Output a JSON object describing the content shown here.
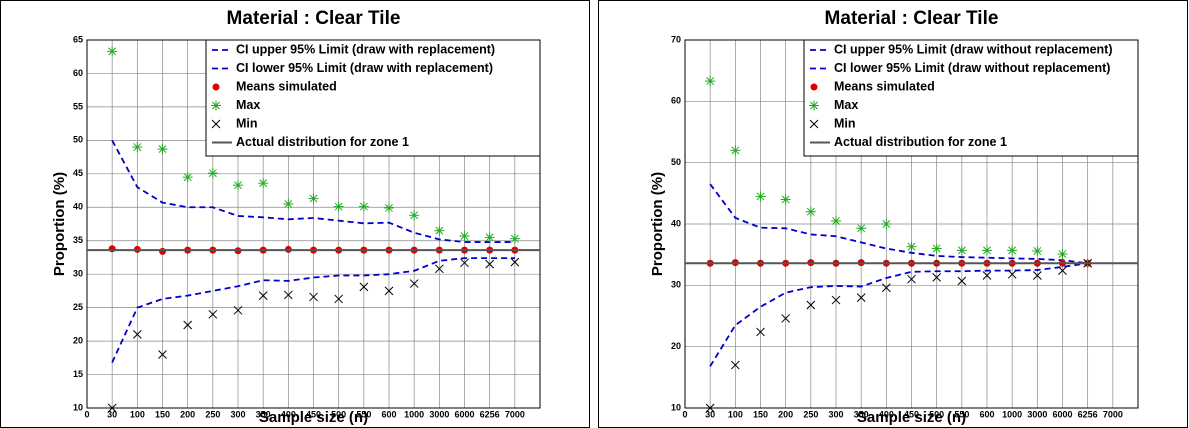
{
  "chart_data": [
    {
      "type": "line",
      "title": "Material : Clear Tile",
      "xlabel": "Sample size (n)",
      "ylabel": "Proportion (%)",
      "categories": [
        "0",
        "30",
        "100",
        "150",
        "200",
        "250",
        "300",
        "350",
        "400",
        "450",
        "500",
        "550",
        "600",
        "1000",
        "3000",
        "6000",
        "6256",
        "7000",
        null
      ],
      "ylim": [
        10,
        65
      ],
      "yticks": [
        10,
        15,
        20,
        25,
        30,
        35,
        40,
        45,
        50,
        55,
        60,
        65
      ],
      "grid": true,
      "legend": "upper right",
      "series": [
        {
          "name": "CI upper 95% Limit (draw with replacement)",
          "color": "#0000cc",
          "style": "dashed",
          "values": [
            null,
            50,
            43,
            40.7,
            40,
            40,
            38.7,
            38.5,
            38.2,
            38.4,
            38,
            37.6,
            37.7,
            36.2,
            35.2,
            34.8,
            34.8,
            34.8,
            null
          ]
        },
        {
          "name": "CI lower 95% Limit (draw with replacement)",
          "color": "#0000cc",
          "style": "dashed",
          "values": [
            null,
            16.8,
            25,
            26.3,
            26.8,
            27.5,
            28.2,
            29.1,
            29,
            29.5,
            29.8,
            29.8,
            30,
            30.5,
            32,
            32.4,
            32.4,
            32.4,
            null
          ]
        },
        {
          "name": "Means simulated",
          "color": "#dd0000",
          "style": "dot",
          "values": [
            null,
            33.8,
            33.7,
            33.4,
            33.6,
            33.6,
            33.5,
            33.6,
            33.7,
            33.6,
            33.6,
            33.6,
            33.6,
            33.6,
            33.6,
            33.6,
            33.6,
            33.6,
            null
          ]
        },
        {
          "name": "Max",
          "color": "#22aa22",
          "style": "star",
          "values": [
            null,
            63.3,
            49,
            48.7,
            44.5,
            45.1,
            43.3,
            43.6,
            40.5,
            41.3,
            40.1,
            40.1,
            39.9,
            38.8,
            36.5,
            35.7,
            35.5,
            35.3,
            null
          ]
        },
        {
          "name": "Min",
          "color": "#000000",
          "style": "x",
          "values": [
            null,
            10,
            21,
            18,
            22.4,
            24,
            24.6,
            26.8,
            26.9,
            26.6,
            26.3,
            28.1,
            27.5,
            28.6,
            30.8,
            31.7,
            31.5,
            31.8,
            null
          ]
        },
        {
          "name": "Actual distribution for zone 1",
          "color": "#555555",
          "style": "hline",
          "value": 33.6
        }
      ]
    },
    {
      "type": "line",
      "title": "Material : Clear Tile",
      "xlabel": "Sample size (n)",
      "ylabel": "Proportion (%)",
      "categories": [
        "0",
        "30",
        "100",
        "150",
        "200",
        "250",
        "300",
        "350",
        "400",
        "450",
        "500",
        "550",
        "600",
        "1000",
        "3000",
        "6000",
        "6256",
        "7000",
        null
      ],
      "ylim": [
        10,
        70
      ],
      "yticks": [
        10,
        20,
        30,
        40,
        50,
        60,
        70
      ],
      "grid": true,
      "legend": "upper right",
      "series": [
        {
          "name": "CI upper 95% Limit (draw without replacement)",
          "color": "#0000cc",
          "style": "dashed",
          "values": [
            null,
            46.5,
            41,
            39.4,
            39.3,
            38.3,
            38,
            37,
            36,
            35.3,
            34.8,
            34.6,
            34.5,
            34.4,
            34.3,
            34.1,
            33.6,
            null,
            null
          ]
        },
        {
          "name": "CI lower 95% Limit (draw without replacement)",
          "color": "#0000cc",
          "style": "dashed",
          "values": [
            null,
            16.8,
            23.5,
            26.5,
            28.8,
            29.7,
            29.9,
            29.8,
            31.2,
            32.2,
            32.3,
            32.3,
            32.4,
            32.4,
            32.5,
            33,
            33.6,
            null,
            null
          ]
        },
        {
          "name": "Means simulated",
          "color": "#dd0000",
          "style": "dot",
          "values": [
            null,
            33.6,
            33.7,
            33.6,
            33.6,
            33.7,
            33.6,
            33.7,
            33.6,
            33.6,
            33.6,
            33.6,
            33.6,
            33.6,
            33.6,
            33.6,
            33.6,
            null,
            null
          ]
        },
        {
          "name": "Max",
          "color": "#22aa22",
          "style": "star",
          "values": [
            null,
            63.3,
            52,
            44.5,
            44,
            42,
            40.5,
            39.3,
            40,
            36.3,
            36,
            35.7,
            35.7,
            35.7,
            35.6,
            35.1,
            33.6,
            null,
            null
          ]
        },
        {
          "name": "Min",
          "color": "#000000",
          "style": "x",
          "values": [
            null,
            10,
            17,
            22.4,
            24.6,
            26.8,
            27.6,
            28,
            29.6,
            31,
            31.3,
            30.7,
            31.6,
            31.8,
            31.6,
            32.4,
            33.6,
            null,
            null
          ]
        },
        {
          "name": "Actual distribution for zone 1",
          "color": "#555555",
          "style": "hline",
          "value": 33.6
        }
      ]
    }
  ]
}
